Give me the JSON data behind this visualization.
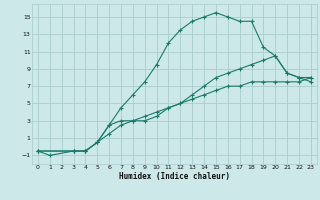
{
  "xlabel": "Humidex (Indice chaleur)",
  "bg_color": "#cce8e8",
  "grid_color": "#aacccc",
  "line_color": "#1a7a6a",
  "xlim": [
    -0.5,
    23.5
  ],
  "ylim": [
    -2.0,
    16.5
  ],
  "xticks": [
    0,
    1,
    2,
    3,
    4,
    5,
    6,
    7,
    8,
    9,
    10,
    11,
    12,
    13,
    14,
    15,
    16,
    17,
    18,
    19,
    20,
    21,
    22,
    23
  ],
  "yticks": [
    -1,
    1,
    3,
    5,
    7,
    9,
    11,
    13,
    15
  ],
  "series": [
    {
      "x": [
        0,
        1,
        3,
        4,
        5,
        6,
        7,
        8,
        9,
        10,
        11,
        12,
        13,
        14,
        15,
        16,
        17,
        18,
        19,
        20,
        21,
        22,
        23
      ],
      "y": [
        -0.5,
        -1.0,
        -0.5,
        -0.5,
        0.5,
        2.5,
        4.5,
        6.0,
        7.5,
        9.5,
        12.0,
        13.5,
        14.5,
        15.0,
        15.5,
        15.0,
        14.5,
        14.5,
        11.5,
        10.5,
        8.5,
        8.0,
        7.5
      ]
    },
    {
      "x": [
        0,
        3,
        4,
        5,
        6,
        7,
        8,
        9,
        10,
        11,
        12,
        13,
        14,
        15,
        16,
        17,
        18,
        19,
        20,
        21,
        22,
        23
      ],
      "y": [
        -0.5,
        -0.5,
        -0.5,
        0.5,
        2.5,
        3.0,
        3.0,
        3.0,
        3.5,
        4.5,
        5.0,
        6.0,
        7.0,
        8.0,
        8.5,
        9.0,
        9.5,
        10.0,
        10.5,
        8.5,
        8.0,
        8.0
      ]
    },
    {
      "x": [
        0,
        3,
        4,
        5,
        6,
        7,
        8,
        9,
        10,
        11,
        12,
        13,
        14,
        15,
        16,
        17,
        18,
        19,
        20,
        21,
        22,
        23
      ],
      "y": [
        -0.5,
        -0.5,
        -0.5,
        0.5,
        1.5,
        2.5,
        3.0,
        3.5,
        4.0,
        4.5,
        5.0,
        5.5,
        6.0,
        6.5,
        7.0,
        7.0,
        7.5,
        7.5,
        7.5,
        7.5,
        7.5,
        8.0
      ]
    }
  ]
}
